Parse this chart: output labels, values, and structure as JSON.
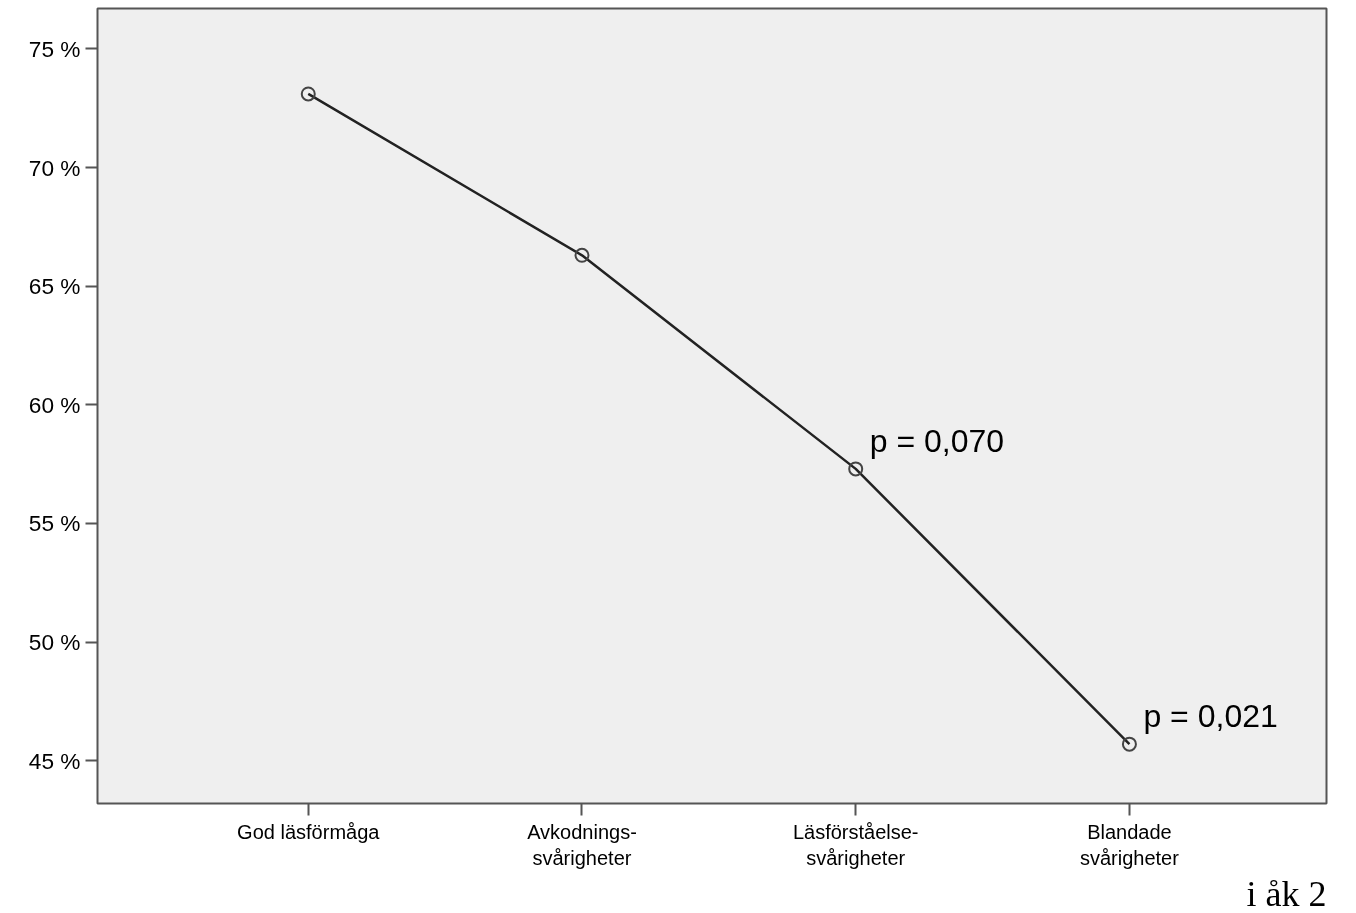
{
  "chart_data": {
    "type": "line",
    "categories": [
      "God läsförmåga",
      "Avkodnings-\nsvårigheter",
      "Läsförståelse-\nsvårigheter",
      "Blandade\nsvårigheter"
    ],
    "series": [
      {
        "color": "#222222",
        "values": [
          73.1,
          66.3,
          57.3,
          45.7
        ]
      }
    ],
    "ylim": [
      43.2,
      76.7
    ],
    "yticks": [
      {
        "value": 45,
        "label": "45 %"
      },
      {
        "value": 50,
        "label": "50 %"
      },
      {
        "value": 55,
        "label": "55 %"
      },
      {
        "value": 60,
        "label": "60 %"
      },
      {
        "value": 65,
        "label": "65 %"
      },
      {
        "value": 70,
        "label": "70 %"
      },
      {
        "value": 75,
        "label": "75 %"
      }
    ],
    "grid": false,
    "marker": "circle",
    "line_style": "solid",
    "annotations": [
      {
        "text": "p = 0,070",
        "x": "Läsförståelse-\nsvårigheter",
        "y": 57.3
      },
      {
        "text": "p = 0,021",
        "x": "Blandade\nsvårigheter",
        "y": 45.7
      },
      "i åk 2"
    ]
  }
}
